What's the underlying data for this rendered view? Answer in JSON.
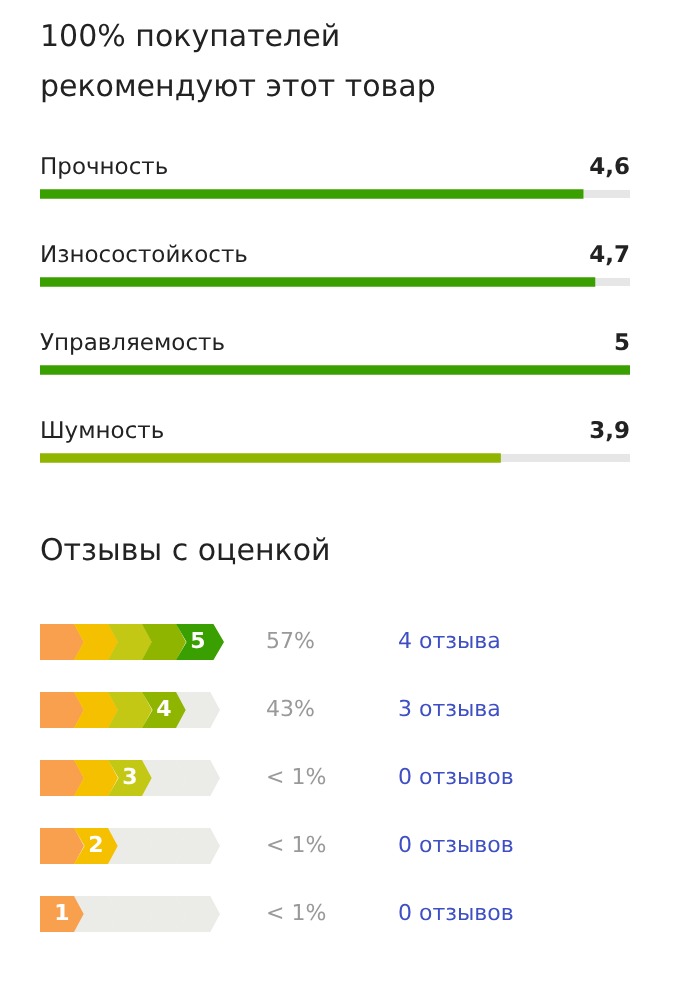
{
  "chart_data": [
    {
      "type": "bar",
      "orientation": "horizontal",
      "title": "100% покупателей рекомендуют этот товар",
      "categories": [
        "Прочность",
        "Износостойкость",
        "Управляемость",
        "Шумность"
      ],
      "values": [
        4.6,
        4.7,
        5,
        3.9
      ],
      "colors": [
        "#3a9f00",
        "#3a9f00",
        "#3a9f00",
        "#8fb500"
      ],
      "value_labels": [
        "4,6",
        "4,7",
        "5",
        "3,9"
      ],
      "xlim": [
        0,
        5
      ]
    },
    {
      "type": "other",
      "title": "Отзывы с оценкой",
      "categories": [
        "5",
        "4",
        "3",
        "2",
        "1"
      ],
      "value_labels": [
        "57%",
        "43%",
        "< 1%",
        "< 1%",
        "< 1%"
      ],
      "colors": [
        "#f9a04e",
        "#f5c000",
        "#c3c815",
        "#8fb500",
        "#3a9f00"
      ],
      "annotations": [
        "4 отзыва",
        "3 отзыва",
        "0 отзывов",
        "0 отзывов",
        "0 отзывов"
      ]
    }
  ]
}
